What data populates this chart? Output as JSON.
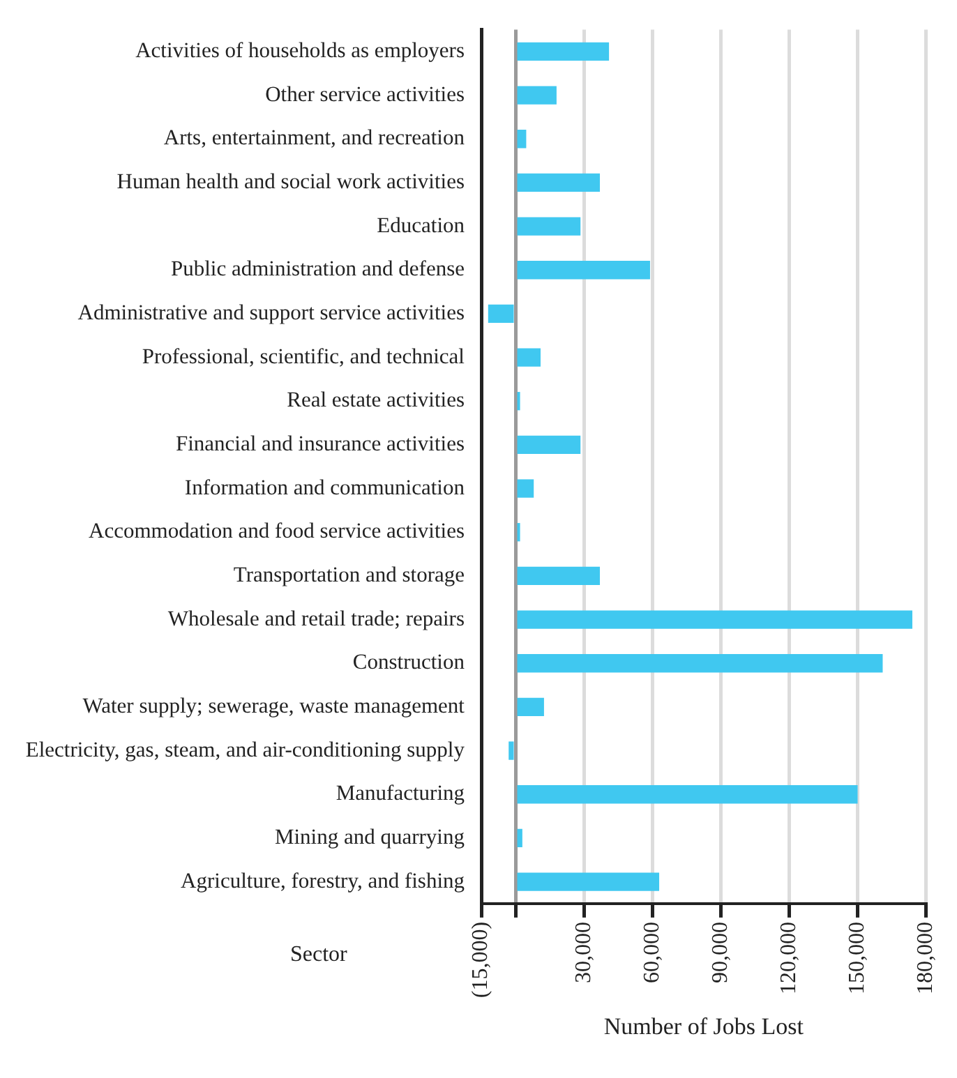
{
  "chart_data": {
    "type": "bar",
    "orientation": "horizontal",
    "xlabel": "Number of Jobs Lost",
    "ylabel": "Sector",
    "categories": [
      "Activities of households as employers",
      "Other service activities",
      "Arts, entertainment, and recreation",
      "Human health and social work activities",
      "Education",
      "Public administration and defense",
      "Administrative and support service activities",
      "Professional, scientific, and technical",
      "Real estate activities",
      "Financial and insurance activities",
      "Information and communication",
      "Accommodation and food service activities",
      "Transportation and storage",
      "Wholesale and retail trade; repairs",
      "Construction",
      "Water supply; sewerage, waste management",
      "Electricity, gas, steam, and air-conditioning supply",
      "Manufacturing",
      "Mining and quarrying",
      "Agriculture, forestry, and fishing"
    ],
    "values": [
      41000,
      18000,
      4700,
      37000,
      28500,
      59000,
      -12000,
      11000,
      2000,
      28500,
      8000,
      2000,
      37000,
      174000,
      161000,
      12500,
      -3000,
      150000,
      3000,
      63000
    ],
    "color": "#40c8f0",
    "xlim": [
      -15000,
      180000
    ],
    "xticks": [
      {
        "value": -15000,
        "label": "(15,000)"
      },
      {
        "value": 0,
        "label": null
      },
      {
        "value": 30000,
        "label": "30,000"
      },
      {
        "value": 60000,
        "label": "60,000"
      },
      {
        "value": 90000,
        "label": "90,000"
      },
      {
        "value": 120000,
        "label": "120,000"
      },
      {
        "value": 150000,
        "label": "150,000"
      },
      {
        "value": 180000,
        "label": "180,000"
      }
    ],
    "grid": "x",
    "legend": false
  }
}
